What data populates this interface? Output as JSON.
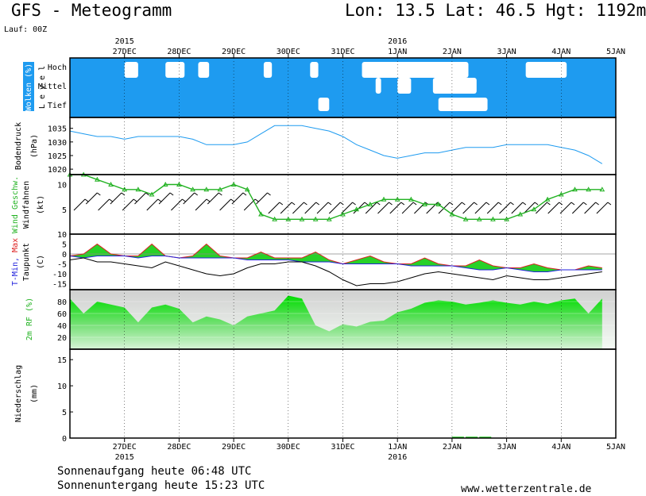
{
  "header": {
    "title": "GFS - Meteogramm",
    "location": "Lon: 13.5  Lat: 46.5  Hgt: 1192m",
    "run": "Lauf: 00Z"
  },
  "footer": {
    "sunrise": "Sonnenaufgang heute 06:48 UTC",
    "sunset": "Sonnenuntergang heute 15:23 UTC",
    "website": "www.wetterzentrale.de"
  },
  "colors": {
    "cloud_sky": "#1e9bf0",
    "pressure_line": "#1e9bf0",
    "wind_speed": "#22b222",
    "humidity_fill": "#22dd22",
    "temp_max": "#dd2222",
    "temp_min": "#2222dd",
    "warm_fill": "#11cc11",
    "cold_fill": "#11bbcc"
  },
  "chart_data": [
    {
      "type": "area",
      "title": "Wolken (%)",
      "ylabel": "Level",
      "levels": [
        "Hoch",
        "Mittel",
        "Tief"
      ],
      "x_ticks": [
        "27DEC",
        "28DEC",
        "29DEC",
        "30DEC",
        "31DEC",
        "1JAN",
        "2JAN",
        "3JAN",
        "4JAN",
        "5JAN"
      ],
      "year_labels": [
        {
          "at": "27DEC",
          "label": "2015"
        },
        {
          "at": "1JAN",
          "label": "2016"
        }
      ],
      "x_unit": "days since 26DEC 00Z",
      "clouds": {
        "Hoch": [
          [
            1.0,
            1.25
          ],
          [
            1.75,
            2.1
          ],
          [
            2.35,
            2.55
          ],
          [
            3.55,
            3.7
          ],
          [
            4.4,
            4.55
          ],
          [
            5.35,
            7.3
          ],
          [
            8.35,
            9.1
          ]
        ],
        "Mittel": [
          [
            5.6,
            5.7
          ],
          [
            6.0,
            6.25
          ],
          [
            6.65,
            7.45
          ]
        ],
        "Tief": [
          [
            4.55,
            4.75
          ],
          [
            6.75,
            7.65
          ]
        ]
      }
    },
    {
      "type": "line",
      "title": "Bodendruck",
      "ylabel": "(hPa)",
      "yticks": [
        1020,
        1025,
        1030,
        1035
      ],
      "ylim": [
        1018,
        1039
      ],
      "x": [
        0,
        0.25,
        0.5,
        0.75,
        1.0,
        1.25,
        1.5,
        1.75,
        2.0,
        2.25,
        2.5,
        2.75,
        3.0,
        3.25,
        3.5,
        3.75,
        4.0,
        4.25,
        4.5,
        4.75,
        5.0,
        5.25,
        5.5,
        5.75,
        6.0,
        6.25,
        6.5,
        6.75,
        7.0,
        7.25,
        7.5,
        7.75,
        8.0,
        8.25,
        8.5,
        8.75,
        9.0,
        9.25,
        9.5,
        9.75
      ],
      "series": [
        {
          "name": "Bodendruck",
          "values": [
            1034,
            1033,
            1032,
            1032,
            1031,
            1032,
            1032,
            1032,
            1032,
            1031,
            1029,
            1029,
            1029,
            1030,
            1033,
            1036,
            1036,
            1036,
            1035,
            1034,
            1032,
            1029,
            1027,
            1025,
            1024,
            1025,
            1026,
            1026,
            1027,
            1028,
            1028,
            1028,
            1029,
            1029,
            1029,
            1029,
            1028,
            1027,
            1025,
            1022
          ]
        }
      ]
    },
    {
      "type": "line",
      "title": "Wind Geschw. / Windfahnen",
      "ylabel": "(kt)",
      "yticks": [
        5,
        10
      ],
      "x": [
        0,
        0.25,
        0.5,
        0.75,
        1.0,
        1.25,
        1.5,
        1.75,
        2.0,
        2.25,
        2.5,
        2.75,
        3.0,
        3.25,
        3.5,
        3.75,
        4.0,
        4.25,
        4.5,
        4.75,
        5.0,
        5.25,
        5.5,
        5.75,
        6.0,
        6.25,
        6.5,
        6.75,
        7.0,
        7.25,
        7.5,
        7.75,
        8.0,
        8.25,
        8.5,
        8.75,
        9.0,
        9.25,
        9.5,
        9.75
      ],
      "series": [
        {
          "name": "Wind Geschw.",
          "values": [
            12,
            12,
            11,
            10,
            9,
            9,
            8,
            10,
            10,
            9,
            9,
            9,
            10,
            9,
            4,
            3,
            3,
            3,
            3,
            3,
            4,
            5,
            6,
            7,
            7,
            7,
            6,
            6,
            4,
            3,
            3,
            3,
            3,
            4,
            5,
            7,
            8,
            9,
            9,
            9
          ]
        }
      ]
    },
    {
      "type": "line",
      "title": "T-Min, Max / Taupunkt",
      "ylabel": "(C)",
      "yticks": [
        -15,
        -10,
        -5,
        0,
        5,
        10
      ],
      "ylim": [
        -18,
        10
      ],
      "x": [
        0,
        0.25,
        0.5,
        0.75,
        1.0,
        1.25,
        1.5,
        1.75,
        2.0,
        2.25,
        2.5,
        2.75,
        3.0,
        3.25,
        3.5,
        3.75,
        4.0,
        4.25,
        4.5,
        4.75,
        5.0,
        5.25,
        5.5,
        5.75,
        6.0,
        6.25,
        6.5,
        6.75,
        7.0,
        7.25,
        7.5,
        7.75,
        8.0,
        8.25,
        8.5,
        8.75,
        9.0,
        9.25,
        9.5,
        9.75
      ],
      "series": [
        {
          "name": "T-Max",
          "values": [
            -1,
            0,
            5,
            0,
            -1,
            -1,
            5,
            -1,
            -2,
            -1,
            5,
            -1,
            -2,
            -2,
            1,
            -2,
            -2,
            -2,
            1,
            -3,
            -5,
            -3,
            -1,
            -4,
            -5,
            -5,
            -2,
            -5,
            -6,
            -6,
            -3,
            -6,
            -7,
            -7,
            -5,
            -7,
            -8,
            -8,
            -6,
            -7
          ]
        },
        {
          "name": "T-Min",
          "values": [
            -1,
            -2,
            -1,
            -1,
            -1,
            -2,
            -1,
            -1,
            -2,
            -2,
            -2,
            -2,
            -2,
            -3,
            -3,
            -3,
            -3,
            -4,
            -4,
            -4,
            -5,
            -5,
            -5,
            -5,
            -5,
            -6,
            -6,
            -6,
            -6,
            -7,
            -8,
            -8,
            -7,
            -8,
            -9,
            -9,
            -8,
            -8,
            -8,
            -8
          ]
        },
        {
          "name": "Taupunkt",
          "values": [
            -3,
            -2,
            -4,
            -4,
            -5,
            -6,
            -7,
            -4,
            -6,
            -8,
            -10,
            -11,
            -10,
            -7,
            -5,
            -5,
            -4,
            -4,
            -6,
            -9,
            -13,
            -16,
            -15,
            -15,
            -14,
            -12,
            -10,
            -9,
            -10,
            -11,
            -12,
            -13,
            -11,
            -12,
            -13,
            -13,
            -12,
            -11,
            -10,
            -9
          ]
        }
      ]
    },
    {
      "type": "area",
      "title": "2m RF (%)",
      "yticks": [
        20,
        40,
        60,
        80
      ],
      "ylim": [
        0,
        100
      ],
      "x": [
        0,
        0.25,
        0.5,
        0.75,
        1.0,
        1.25,
        1.5,
        1.75,
        2.0,
        2.25,
        2.5,
        2.75,
        3.0,
        3.25,
        3.5,
        3.75,
        4.0,
        4.25,
        4.5,
        4.75,
        5.0,
        5.25,
        5.5,
        5.75,
        6.0,
        6.25,
        6.5,
        6.75,
        7.0,
        7.25,
        7.5,
        7.75,
        8.0,
        8.25,
        8.5,
        8.75,
        9.0,
        9.25,
        9.5,
        9.75
      ],
      "series": [
        {
          "name": "2m RF",
          "values": [
            85,
            60,
            80,
            75,
            70,
            45,
            70,
            75,
            68,
            45,
            55,
            50,
            40,
            55,
            60,
            65,
            90,
            85,
            40,
            30,
            42,
            38,
            46,
            48,
            62,
            68,
            78,
            82,
            80,
            75,
            78,
            82,
            78,
            75,
            80,
            76,
            82,
            85,
            60,
            85
          ]
        }
      ]
    },
    {
      "type": "bar",
      "title": "Niederschlag",
      "ylabel": "(mm)",
      "yticks": [
        0,
        5,
        10,
        15
      ],
      "ylim": [
        0,
        17
      ],
      "x": [
        7.0,
        7.25,
        7.5
      ],
      "values": [
        0.1,
        0.1,
        0.1
      ]
    }
  ]
}
